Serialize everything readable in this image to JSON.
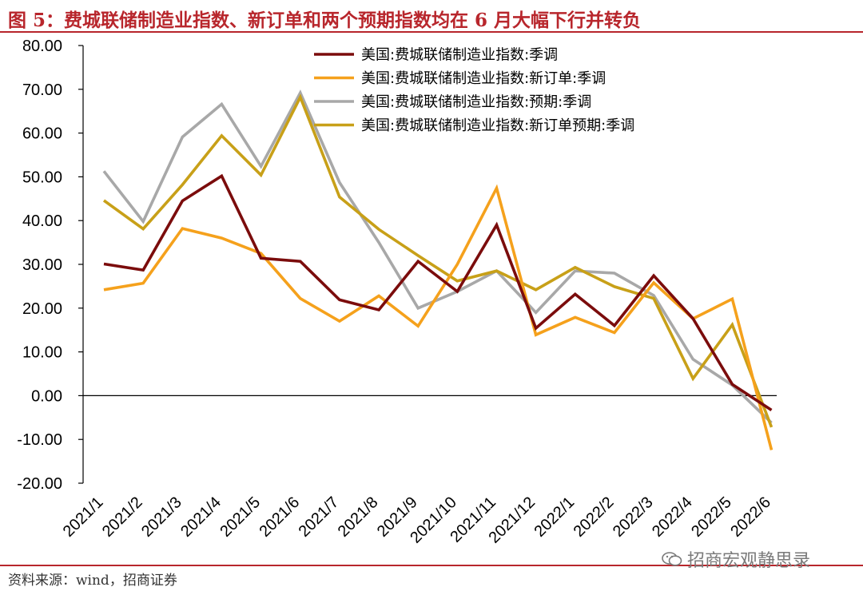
{
  "header": {
    "title": "图 5：费城联储制造业指数、新订单和两个预期指数均在 6 月大幅下行并转负"
  },
  "footer": {
    "source": "资料来源：wind，招商证券",
    "watermark": "招商宏观静思录"
  },
  "chart_data": {
    "type": "line",
    "categories": [
      "2021/1",
      "2021/2",
      "2021/3",
      "2021/4",
      "2021/5",
      "2021/6",
      "2021/7",
      "2021/8",
      "2021/9",
      "2021/10",
      "2021/11",
      "2021/12",
      "2022/1",
      "2022/2",
      "2022/3",
      "2022/4",
      "2022/5",
      "2022/6"
    ],
    "ylim": [
      -20,
      80
    ],
    "yticks": [
      "80.00",
      "70.00",
      "60.00",
      "50.00",
      "40.00",
      "30.00",
      "20.00",
      "10.00",
      "0.00",
      "-10.00",
      "-20.00"
    ],
    "legend_position": "top-right",
    "grid": false,
    "series": [
      {
        "name": "美国:费城联储制造业指数:季调",
        "color": "#7b0c0c",
        "values": [
          30.1,
          28.7,
          44.5,
          50.2,
          31.4,
          30.7,
          21.9,
          19.6,
          30.7,
          23.8,
          39.0,
          15.4,
          23.2,
          16.0,
          27.4,
          17.6,
          2.6,
          -3.3
        ]
      },
      {
        "name": "美国:费城联储制造业指数:新订单:季调",
        "color": "#f5a11c",
        "values": [
          24.2,
          25.7,
          38.2,
          36.0,
          32.5,
          22.2,
          17.0,
          22.8,
          15.9,
          30.0,
          47.4,
          13.9,
          17.9,
          14.4,
          25.8,
          17.6,
          22.1,
          -12.4
        ]
      },
      {
        "name": "美国:费城联储制造业指数:预期:季调",
        "color": "#a8a8a8",
        "values": [
          51.3,
          39.8,
          59.1,
          66.6,
          52.4,
          69.2,
          48.7,
          35.0,
          20.0,
          23.8,
          28.5,
          19.0,
          28.5,
          28.0,
          22.9,
          8.3,
          2.4,
          -6.2
        ]
      },
      {
        "name": "美国:费城联储制造业指数:新订单预期:季调",
        "color": "#c8a018",
        "values": [
          44.6,
          38.1,
          48.2,
          59.4,
          50.4,
          68.2,
          45.4,
          38.0,
          32.0,
          26.2,
          28.5,
          24.2,
          29.3,
          24.9,
          22.2,
          3.9,
          16.2,
          -7.2
        ]
      }
    ]
  }
}
